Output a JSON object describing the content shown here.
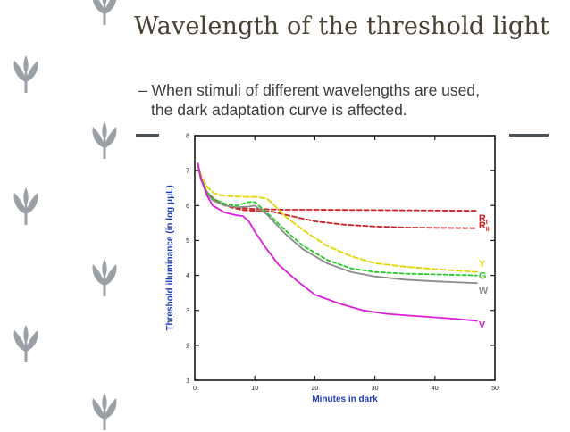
{
  "slide": {
    "title": "Wavelength of the threshold light",
    "bullet_dash": "–",
    "bullet_line1": "When stimuli of different wavelengths are used,",
    "bullet_line2": "the dark adaptation curve is affected."
  },
  "colors": {
    "title": "#4a4032",
    "leaf": "#9aa0a6",
    "rule": "#4a5258",
    "axis": "#1a1a1a",
    "axis_label": "#1f3db5"
  },
  "chart_data": {
    "type": "line",
    "title": "",
    "xlabel": "Minutes in dark",
    "ylabel": "Threshold illuminance (in log μμL)",
    "xlim": [
      0,
      50
    ],
    "ylim": [
      1,
      8
    ],
    "xticks": [
      "0",
      "10",
      "20",
      "30",
      "40",
      "50"
    ],
    "yticks": [
      "1",
      "2",
      "3",
      "4",
      "5",
      "6",
      "7",
      "8"
    ],
    "grid": false,
    "series": [
      {
        "name": "RI",
        "label": "R",
        "subscript": "I",
        "color": "#cc1f1f",
        "dash": "5,3",
        "x": [
          0.5,
          1,
          2,
          3,
          5,
          7,
          10,
          15,
          20,
          30,
          40,
          47
        ],
        "y": [
          7.2,
          6.8,
          6.4,
          6.15,
          6.0,
          5.93,
          5.9,
          5.88,
          5.88,
          5.87,
          5.86,
          5.85
        ]
      },
      {
        "name": "RII",
        "label": "R",
        "subscript": "II",
        "color": "#cc1f1f",
        "dash": "5,3",
        "x": [
          0.5,
          1,
          2,
          4,
          6,
          8,
          10,
          13,
          16,
          20,
          25,
          30,
          35,
          40,
          47
        ],
        "y": [
          7.2,
          6.8,
          6.35,
          6.1,
          5.95,
          5.87,
          5.85,
          5.82,
          5.7,
          5.55,
          5.45,
          5.4,
          5.37,
          5.36,
          5.35
        ]
      },
      {
        "name": "Y",
        "label": "Y",
        "subscript": "",
        "color": "#e3d400",
        "dash": "6,3",
        "x": [
          0.5,
          1,
          2,
          3,
          4,
          6,
          8,
          10,
          12,
          13,
          15,
          18,
          22,
          26,
          30,
          35,
          40,
          47
        ],
        "y": [
          7.2,
          6.9,
          6.55,
          6.38,
          6.3,
          6.27,
          6.25,
          6.25,
          6.2,
          6.05,
          5.7,
          5.3,
          4.85,
          4.55,
          4.35,
          4.25,
          4.18,
          4.1
        ]
      },
      {
        "name": "G",
        "label": "G",
        "subscript": "",
        "color": "#22cc22",
        "dash": "4,3",
        "x": [
          0.5,
          1,
          2,
          3,
          5,
          7,
          9,
          10,
          12,
          15,
          18,
          22,
          26,
          30,
          35,
          40,
          47
        ],
        "y": [
          7.2,
          6.8,
          6.4,
          6.2,
          6.05,
          6.0,
          6.1,
          6.1,
          5.8,
          5.3,
          4.85,
          4.45,
          4.2,
          4.1,
          4.05,
          4.03,
          4.0
        ]
      },
      {
        "name": "W",
        "label": "W",
        "subscript": "",
        "color": "#8c8c8c",
        "dash": "",
        "x": [
          0.5,
          1,
          2,
          3,
          5,
          7,
          9,
          10,
          12,
          15,
          18,
          22,
          26,
          30,
          35,
          40,
          47
        ],
        "y": [
          7.2,
          6.75,
          6.35,
          6.15,
          6.0,
          5.95,
          5.97,
          6.0,
          5.75,
          5.2,
          4.75,
          4.35,
          4.1,
          3.97,
          3.88,
          3.83,
          3.78
        ]
      },
      {
        "name": "V",
        "label": "V",
        "subscript": "",
        "color": "#d91fd9",
        "dash": "",
        "x": [
          0.5,
          1,
          2,
          3,
          5,
          7,
          8,
          9,
          10,
          12,
          14,
          17,
          20,
          24,
          28,
          32,
          36,
          40,
          44,
          47
        ],
        "y": [
          7.2,
          6.8,
          6.3,
          6.0,
          5.8,
          5.72,
          5.7,
          5.55,
          5.25,
          4.75,
          4.3,
          3.85,
          3.45,
          3.2,
          3.0,
          2.9,
          2.85,
          2.8,
          2.75,
          2.7
        ]
      }
    ]
  }
}
